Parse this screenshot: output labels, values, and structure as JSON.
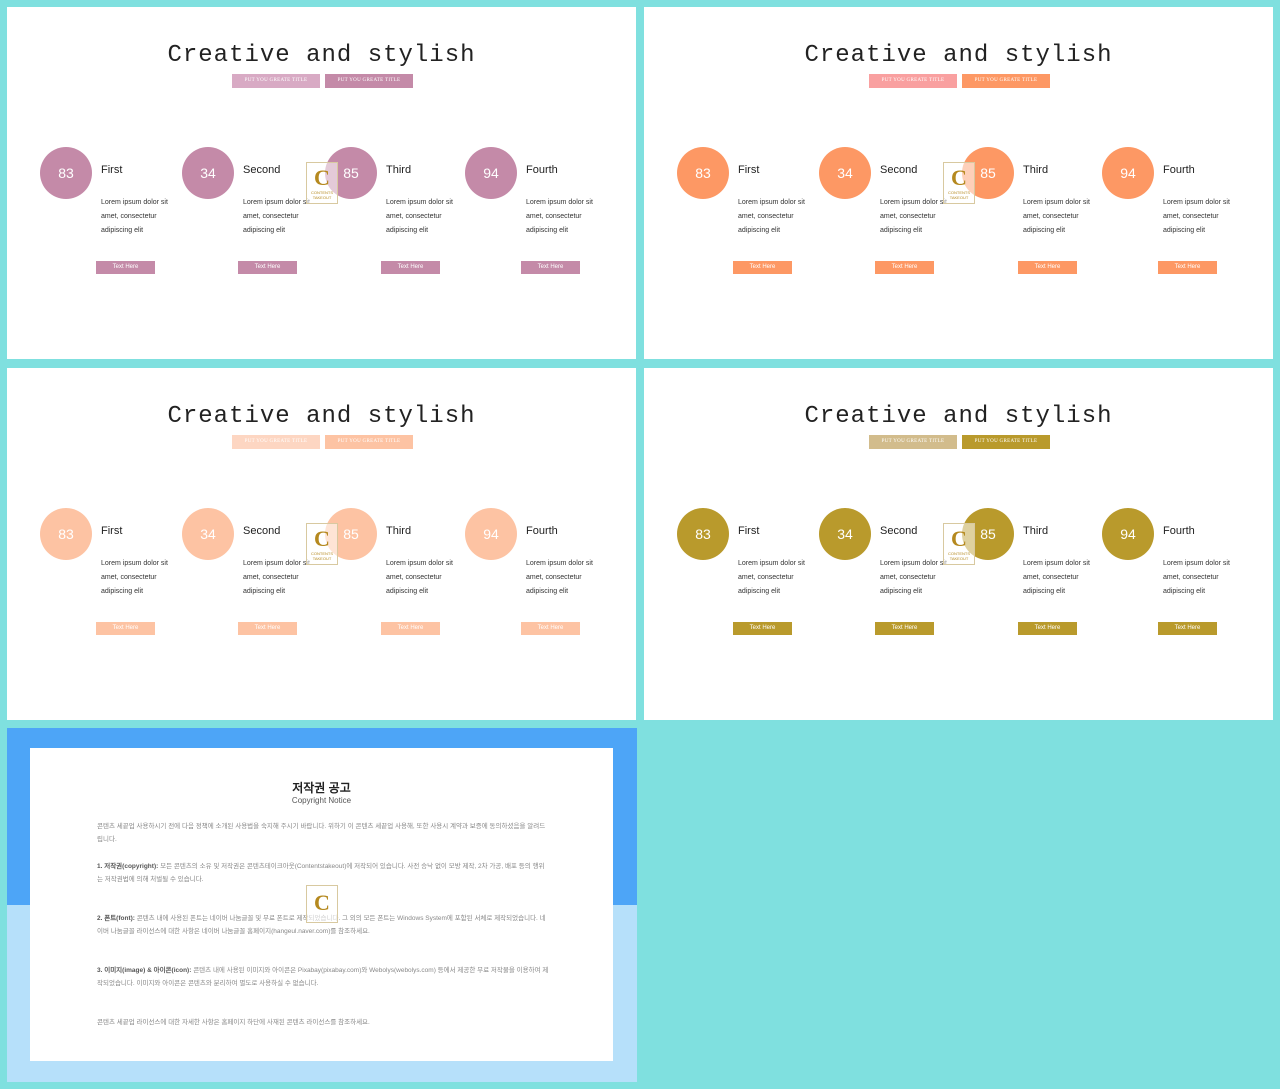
{
  "slides": [
    {
      "title": "Creative and stylish",
      "tag_a": "PUT YOU GREATE TITLE",
      "tag_b": "PUT YOU GREATE TITLE",
      "colors": {
        "circle": "#c48aa8",
        "tag_a": "#d8aac4",
        "tag_b": "#c48aa8",
        "button": "#c48aa8"
      },
      "items": [
        {
          "number": "83",
          "label": "First",
          "desc": "Lorem ipsum dolor sit amet, consectetur adipiscing elit",
          "button": "Text Here"
        },
        {
          "number": "34",
          "label": "Second",
          "desc": "Lorem ipsum dolor sit amet, consectetur adipiscing elit",
          "button": "Text Here"
        },
        {
          "number": "85",
          "label": "Third",
          "desc": "Lorem ipsum dolor sit amet, consectetur adipiscing elit",
          "button": "Text Here"
        },
        {
          "number": "94",
          "label": "Fourth",
          "desc": "Lorem ipsum dolor sit amet, consectetur adipiscing elit",
          "button": "Text Here"
        }
      ]
    },
    {
      "title": "Creative and stylish",
      "tag_a": "PUT YOU GREATE TITLE",
      "tag_b": "PUT YOU GREATE TITLE",
      "colors": {
        "circle": "#fd9864",
        "tag_a": "#f9a0a0",
        "tag_b": "#fd9864",
        "button": "#fd9864"
      },
      "items": [
        {
          "number": "83",
          "label": "First",
          "desc": "Lorem ipsum dolor sit amet, consectetur adipiscing elit",
          "button": "Text Here"
        },
        {
          "number": "34",
          "label": "Second",
          "desc": "Lorem ipsum dolor sit amet, consectetur adipiscing elit",
          "button": "Text Here"
        },
        {
          "number": "85",
          "label": "Third",
          "desc": "Lorem ipsum dolor sit amet, consectetur adipiscing elit",
          "button": "Text Here"
        },
        {
          "number": "94",
          "label": "Fourth",
          "desc": "Lorem ipsum dolor sit amet, consectetur adipiscing elit",
          "button": "Text Here"
        }
      ]
    },
    {
      "title": "Creative and stylish",
      "tag_a": "PUT YOU GREATE TITLE",
      "tag_b": "PUT YOU GREATE TITLE",
      "colors": {
        "circle": "#fdc3a3",
        "tag_a": "#fdd6c2",
        "tag_b": "#fdc3a3",
        "button": "#fdc3a3"
      },
      "items": [
        {
          "number": "83",
          "label": "First",
          "desc": "Lorem ipsum dolor sit amet, consectetur adipiscing elit",
          "button": "Text Here"
        },
        {
          "number": "34",
          "label": "Second",
          "desc": "Lorem ipsum dolor sit amet, consectetur adipiscing elit",
          "button": "Text Here"
        },
        {
          "number": "85",
          "label": "Third",
          "desc": "Lorem ipsum dolor sit amet, consectetur adipiscing elit",
          "button": "Text Here"
        },
        {
          "number": "94",
          "label": "Fourth",
          "desc": "Lorem ipsum dolor sit amet, consectetur adipiscing elit",
          "button": "Text Here"
        }
      ]
    },
    {
      "title": "Creative and stylish",
      "tag_a": "PUT YOU GREATE TITLE",
      "tag_b": "PUT YOU GREATE TITLE",
      "colors": {
        "circle": "#b99a2c",
        "tag_a": "#d2bc8c",
        "tag_b": "#b99a2c",
        "button": "#b99a2c"
      },
      "items": [
        {
          "number": "83",
          "label": "First",
          "desc": "Lorem ipsum dolor sit amet, consectetur adipiscing elit",
          "button": "Text Here"
        },
        {
          "number": "34",
          "label": "Second",
          "desc": "Lorem ipsum dolor sit amet, consectetur adipiscing elit",
          "button": "Text Here"
        },
        {
          "number": "85",
          "label": "Third",
          "desc": "Lorem ipsum dolor sit amet, consectetur adipiscing elit",
          "button": "Text Here"
        },
        {
          "number": "94",
          "label": "Fourth",
          "desc": "Lorem ipsum dolor sit amet, consectetur adipiscing elit",
          "button": "Text Here"
        }
      ]
    }
  ],
  "logo": {
    "letter": "C",
    "text": "CONTENTS TAKEOUT"
  },
  "notice": {
    "title": "저작권 공고",
    "subtitle": "Copyright Notice",
    "paragraphs": [
      {
        "heading": "",
        "text": "콘텐츠 세끝업 사용하시기 전에 다음 정책에 소개된 사용법을 숙지해 주시기 바랍니다. 위하기 이 콘텐츠 세끝업 사용해, 또한 사용시 계약과 보증에 동의하셨음을 알려드립니다."
      },
      {
        "heading": "1. 저작권(copyright):",
        "text": "모든 콘텐츠의 소유 및 저작권은 콘텐츠테이크아웃(Contentstakeout)에 저작되어 있습니다. 사전 승낙 없이 모방 제작, 2차 가공, 배포 등의 행위는 저작권법에 의해 처벌될 수 있습니다."
      },
      {
        "heading": "2. 폰트(font):",
        "text": "콘텐츠 내에 사용된 폰트는 네이버 나눔글꼴 및 무료 폰트로 제작되었습니다. 그 외의 모든 폰트는 Windows System에 포함된 서체로 제작되었습니다. 네이버 나눔글꼴 라이선스에 대한 사항은 네이버 나눔글꼴 홈페이지(hangeul.naver.com)를 참조하세요."
      },
      {
        "heading": "3. 이미지(image) & 아이콘(icon):",
        "text": "콘텐츠 내에 사용된 이미지와 아이콘은 Pixabay(pixabay.com)와 Webolys(webolys.com) 등에서 제공한 무료 저작물을 이용하여 제작되었습니다. 이미지와 아이콘은 콘텐츠와 분리하여 별도로 사용하실 수 없습니다."
      },
      {
        "heading": "",
        "text": "콘텐츠 세끝업 라이선스에 대한 자세한 사항은 홈페이지 하단에 사재된 콘텐츠 라이선스를 참조하세요."
      }
    ]
  }
}
